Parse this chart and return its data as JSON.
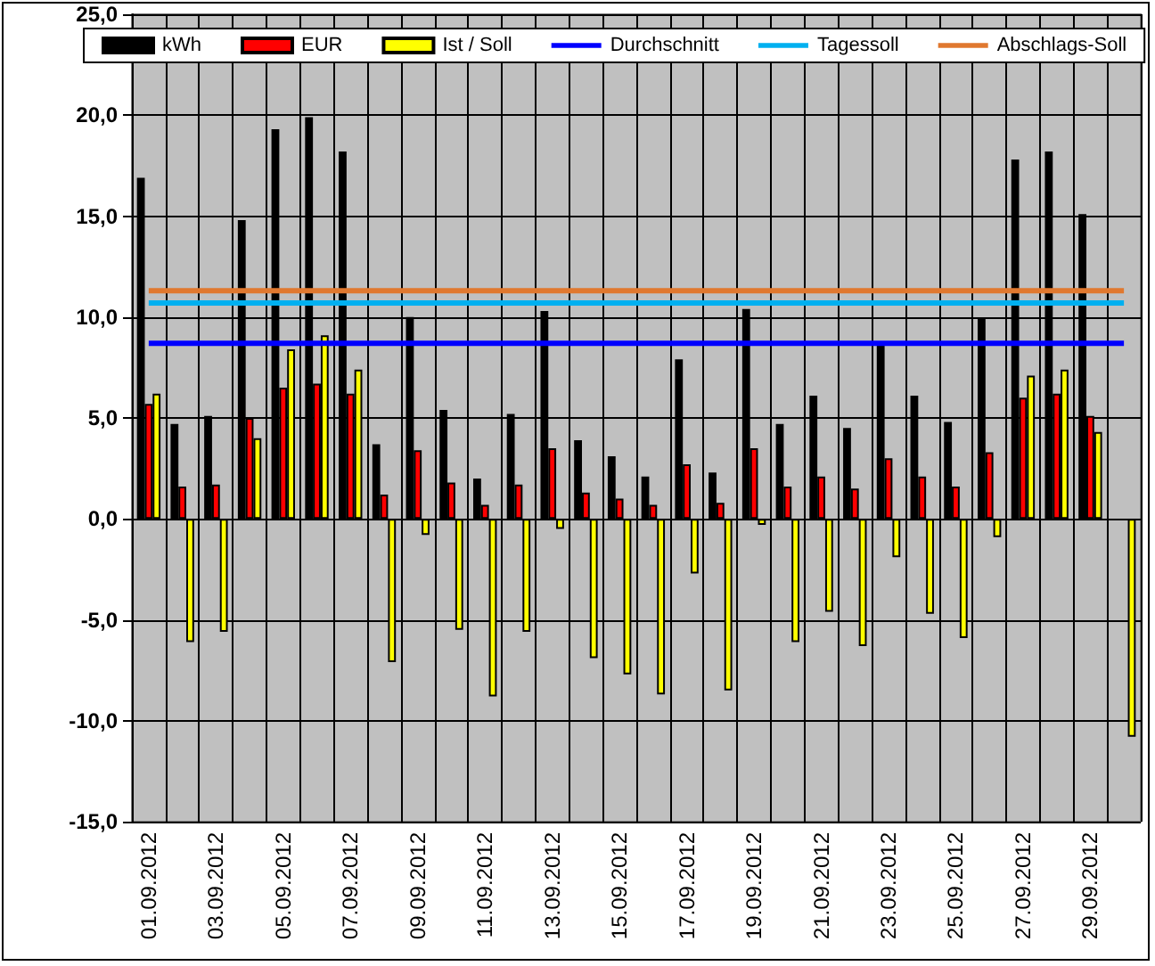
{
  "chart_data": {
    "type": "bar",
    "categories": [
      "01.09.2012",
      null,
      "03.09.2012",
      null,
      "05.09.2012",
      null,
      "07.09.2012",
      null,
      "09.09.2012",
      null,
      "11.09.2012",
      null,
      "13.09.2012",
      null,
      "15.09.2012",
      null,
      "17.09.2012",
      null,
      "19.09.2012",
      null,
      "21.09.2012",
      null,
      "23.09.2012",
      null,
      "25.09.2012",
      null,
      "27.09.2012",
      null,
      "29.09.2012",
      null
    ],
    "series": [
      {
        "name": "kWh",
        "color": "#000000",
        "values": [
          16.9,
          4.7,
          5.1,
          14.8,
          19.3,
          19.9,
          18.2,
          3.7,
          10.0,
          5.4,
          2.0,
          5.2,
          10.3,
          3.9,
          3.1,
          2.1,
          7.9,
          2.3,
          10.4,
          4.7,
          6.1,
          4.5,
          8.8,
          6.1,
          4.8,
          9.9,
          17.8,
          18.2,
          15.1,
          null
        ]
      },
      {
        "name": "EUR",
        "color": "#ff0000",
        "values": [
          5.7,
          1.6,
          1.7,
          5.0,
          6.5,
          6.7,
          6.2,
          1.2,
          3.4,
          1.8,
          0.7,
          1.7,
          3.5,
          1.3,
          1.0,
          0.7,
          2.7,
          0.8,
          3.5,
          1.6,
          2.1,
          1.5,
          3.0,
          2.1,
          1.6,
          3.3,
          6.0,
          6.2,
          5.1,
          null
        ]
      },
      {
        "name": "Ist / Soll",
        "color": "#ffff00",
        "values": [
          6.2,
          -6.1,
          -5.6,
          4.0,
          8.4,
          9.1,
          7.4,
          -7.1,
          -0.8,
          -5.5,
          -8.8,
          -5.6,
          -0.5,
          -6.9,
          -7.7,
          -8.7,
          -2.7,
          -8.5,
          -0.3,
          -6.1,
          -4.6,
          -6.3,
          -1.9,
          -4.7,
          -5.9,
          -0.9,
          7.1,
          7.4,
          4.3,
          -10.8
        ]
      },
      {
        "name": "Durchschnitt",
        "type": "line",
        "color": "#0000ff",
        "values": [
          8.7,
          8.7,
          8.7,
          8.7,
          8.7,
          8.7,
          8.7,
          8.7,
          8.7,
          8.7,
          8.7,
          8.7,
          8.7,
          8.7,
          8.7,
          8.7,
          8.7,
          8.7,
          8.7,
          8.7,
          8.7,
          8.7,
          8.7,
          8.7,
          8.7,
          8.7,
          8.7,
          8.7,
          8.7,
          8.7
        ]
      },
      {
        "name": "Tagessoll",
        "type": "line",
        "color": "#00b0f0",
        "values": [
          10.7,
          10.7,
          10.7,
          10.7,
          10.7,
          10.7,
          10.7,
          10.7,
          10.7,
          10.7,
          10.7,
          10.7,
          10.7,
          10.7,
          10.7,
          10.7,
          10.7,
          10.7,
          10.7,
          10.7,
          10.7,
          10.7,
          10.7,
          10.7,
          10.7,
          10.7,
          10.7,
          10.7,
          10.7,
          10.7
        ]
      },
      {
        "name": "Abschlags-Soll",
        "type": "line",
        "color": "#e0782f",
        "values": [
          11.3,
          11.3,
          11.3,
          11.3,
          11.3,
          11.3,
          11.3,
          11.3,
          11.3,
          11.3,
          11.3,
          11.3,
          11.3,
          11.3,
          11.3,
          11.3,
          11.3,
          11.3,
          11.3,
          11.3,
          11.3,
          11.3,
          11.3,
          11.3,
          11.3,
          11.3,
          11.3,
          11.3,
          11.3,
          11.3
        ]
      }
    ],
    "ylim": [
      -15,
      25
    ],
    "yticks": [
      {
        "value": -15,
        "label": "-15,0"
      },
      {
        "value": -10,
        "label": "-10,0"
      },
      {
        "value": -5,
        "label": "-5,0"
      },
      {
        "value": 0,
        "label": "0,0"
      },
      {
        "value": 5,
        "label": "5,0"
      },
      {
        "value": 10,
        "label": "10,0"
      },
      {
        "value": 15,
        "label": "15,0"
      },
      {
        "value": 20,
        "label": "20,0"
      },
      {
        "value": 25,
        "label": "25,0"
      }
    ],
    "grid": true,
    "legend": "top",
    "marker": "none",
    "line_style": "solid"
  }
}
